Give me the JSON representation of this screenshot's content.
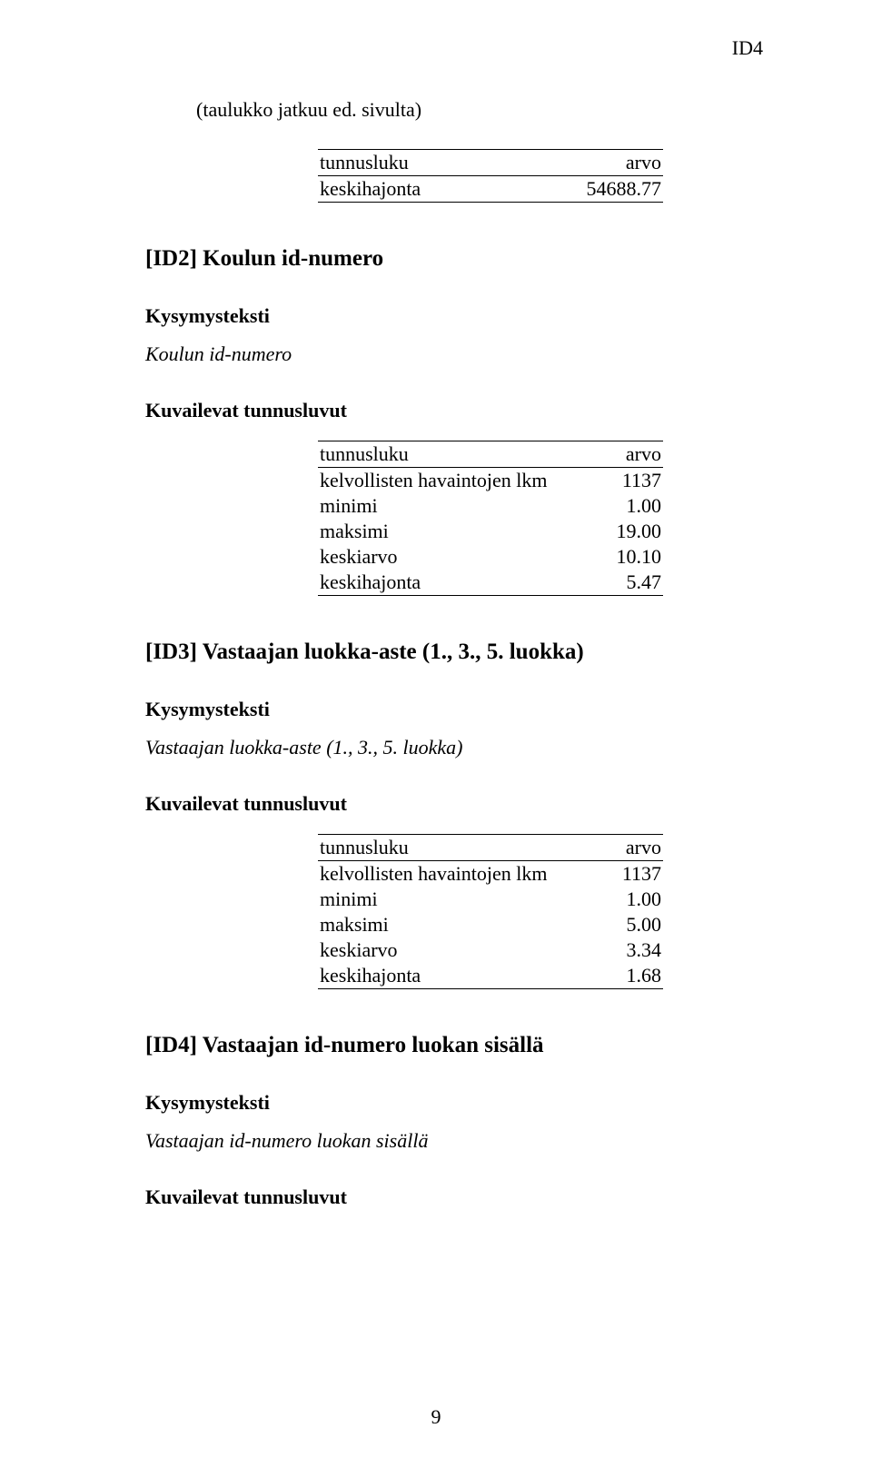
{
  "header_id": "ID4",
  "continuation_note": "(taulukko jatkuu ed. sivulta)",
  "cont_table": {
    "hdr_label": "tunnusluku",
    "hdr_val": "arvo",
    "rows": [
      {
        "label": "keskihajonta",
        "val": "54688.77"
      }
    ]
  },
  "sections": [
    {
      "heading": "[ID2] Koulun id-numero",
      "kys_label": "Kysymysteksti",
      "question": "Koulun id-numero",
      "kuv_label": "Kuvailevat tunnusluvut",
      "table": {
        "hdr_label": "tunnusluku",
        "hdr_val": "arvo",
        "rows": [
          {
            "label": "kelvollisten havaintojen lkm",
            "val": "1137"
          },
          {
            "label": "minimi",
            "val": "1.00"
          },
          {
            "label": "maksimi",
            "val": "19.00"
          },
          {
            "label": "keskiarvo",
            "val": "10.10"
          },
          {
            "label": "keskihajonta",
            "val": "5.47"
          }
        ]
      }
    },
    {
      "heading": "[ID3] Vastaajan luokka-aste (1., 3., 5. luokka)",
      "kys_label": "Kysymysteksti",
      "question": "Vastaajan luokka-aste (1., 3., 5. luokka)",
      "kuv_label": "Kuvailevat tunnusluvut",
      "table": {
        "hdr_label": "tunnusluku",
        "hdr_val": "arvo",
        "rows": [
          {
            "label": "kelvollisten havaintojen lkm",
            "val": "1137"
          },
          {
            "label": "minimi",
            "val": "1.00"
          },
          {
            "label": "maksimi",
            "val": "5.00"
          },
          {
            "label": "keskiarvo",
            "val": "3.34"
          },
          {
            "label": "keskihajonta",
            "val": "1.68"
          }
        ]
      }
    },
    {
      "heading": "[ID4] Vastaajan id-numero luokan sisällä",
      "kys_label": "Kysymysteksti",
      "question": "Vastaajan id-numero luokan sisällä",
      "kuv_label": "Kuvailevat tunnusluvut",
      "table": null
    }
  ],
  "page_number": "9"
}
